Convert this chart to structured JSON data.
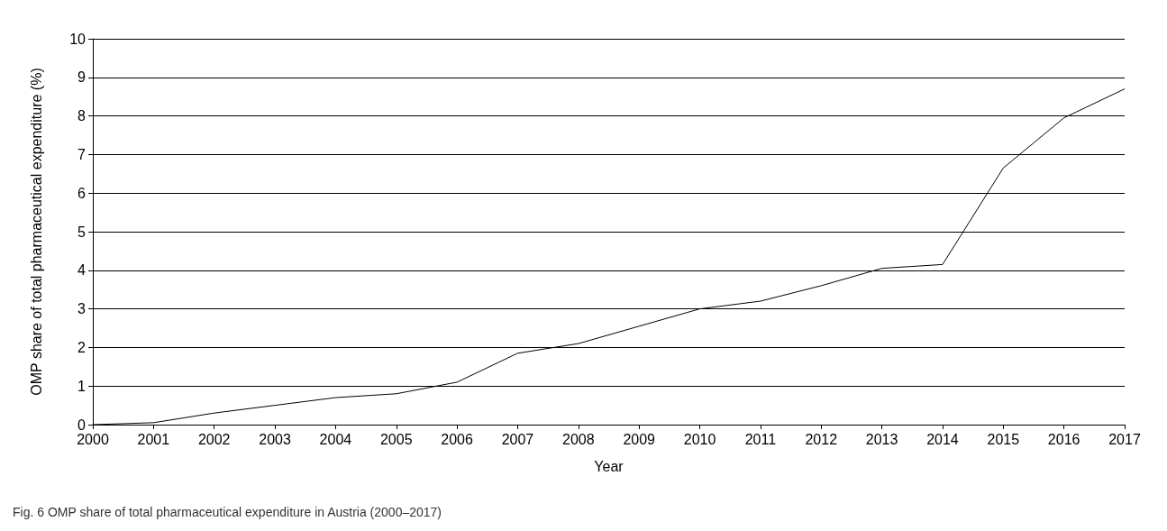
{
  "chart_data": {
    "type": "line",
    "xlabel": "Year",
    "ylabel": "OMP share of total pharmaceutical expenditure (%)",
    "categories": [
      "2000",
      "2001",
      "2002",
      "2003",
      "2004",
      "2005",
      "2006",
      "2007",
      "2008",
      "2009",
      "2010",
      "2011",
      "2012",
      "2013",
      "2014",
      "2015",
      "2016",
      "2017"
    ],
    "series": [
      {
        "color": "#000000",
        "values": [
          0.0,
          0.05,
          0.3,
          0.5,
          0.7,
          0.8,
          1.1,
          1.85,
          2.1,
          2.55,
          3.0,
          3.2,
          3.6,
          4.05,
          4.15,
          6.65,
          7.95,
          8.7
        ]
      }
    ],
    "ylim": [
      0,
      10
    ],
    "yticks": [
      0,
      1,
      2,
      3,
      4,
      5,
      6,
      7,
      8,
      9,
      10
    ],
    "grid": "y",
    "marker": "none",
    "line_style": "solid",
    "annotations": [
      "Fig. 6 OMP share of total pharmaceutical expenditure in Austria (2000–2017)"
    ]
  }
}
